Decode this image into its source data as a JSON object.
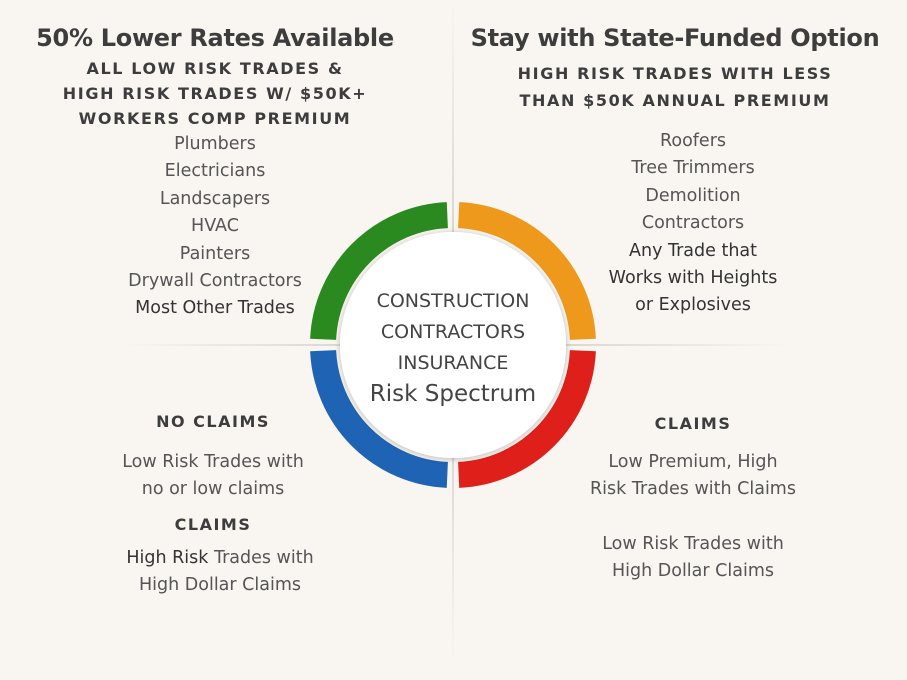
{
  "top_left": {
    "title": "50% Lower Rates Available",
    "subtitle": [
      "ALL LOW RISK TRADES &",
      "HIGH RISK TRADES W/ $50K+",
      "WORKERS COMP PREMIUM"
    ],
    "items": [
      "Plumbers",
      "Electricians",
      "Landscapers",
      "HVAC",
      "Painters",
      "Drywall Contractors",
      "Most Other Trades"
    ]
  },
  "top_right": {
    "title": "Stay with State-Funded Option",
    "subtitle": [
      "HIGH RISK TRADES WITH LESS",
      "THAN $50K ANNUAL PREMIUM"
    ],
    "items": [
      "Roofers",
      "Tree Trimmers",
      "Demolition",
      "Contractors",
      "Any Trade that",
      "Works with Heights",
      "or Explosives"
    ]
  },
  "bottom_left": {
    "heading1": "NO CLAIMS",
    "text1": [
      "Low Risk Trades with",
      "no or low claims"
    ],
    "heading2": "CLAIMS",
    "text2_bold": "High Risk",
    "text2": [
      " Trades with",
      "High Dollar Claims"
    ]
  },
  "bottom_right": {
    "heading": "CLAIMS",
    "text1": [
      "Low Premium, High",
      "Risk Trades with Claims"
    ],
    "text2": [
      "Low Risk Trades with",
      "High Dollar Claims"
    ]
  },
  "center": {
    "lines": [
      "CONSTRUCTION",
      "CONTRACTORS",
      "INSURANCE"
    ],
    "highlight": "Risk Spectrum"
  },
  "ring_colors": {
    "top_left": "#2a8a1f",
    "top_right": "#ee991c",
    "bottom_right": "#df1f1a",
    "bottom_left": "#1f63b5"
  }
}
